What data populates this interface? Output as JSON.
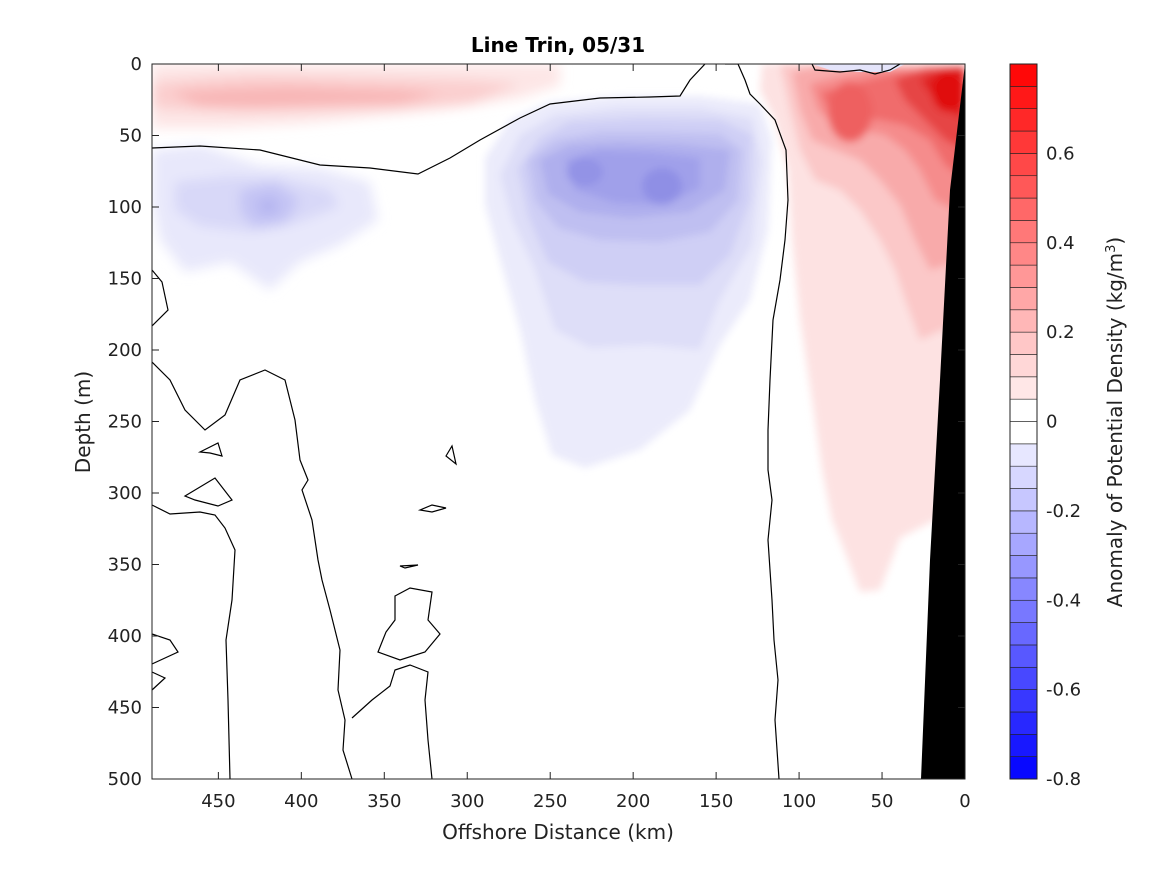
{
  "chart_data": {
    "type": "contour",
    "title": "Line Trin, 05/31",
    "xlabel": "Offshore Distance (km)",
    "ylabel": "Depth (m)",
    "xlim": [
      490,
      0
    ],
    "ylim": [
      500,
      0
    ],
    "x_ticks": [
      "450",
      "400",
      "350",
      "300",
      "250",
      "200",
      "150",
      "100",
      "50",
      "0"
    ],
    "x_tick_values": [
      450,
      400,
      350,
      300,
      250,
      200,
      150,
      100,
      50,
      0
    ],
    "y_ticks": [
      "0",
      "50",
      "100",
      "150",
      "200",
      "250",
      "300",
      "350",
      "400",
      "450",
      "500"
    ],
    "y_tick_values": [
      0,
      50,
      100,
      150,
      200,
      250,
      300,
      350,
      400,
      450,
      500
    ],
    "colorbar": {
      "label_main": "Anomaly of Potential Density (kg/m",
      "label_sup": "3",
      "label_end": ")",
      "range": [
        -0.8,
        0.8
      ],
      "ticks": [
        "0.6",
        "0.4",
        "0.2",
        "0",
        "-0.2",
        "-0.4",
        "-0.6",
        "-0.8"
      ],
      "tick_values": [
        0.6,
        0.4,
        0.2,
        0,
        -0.2,
        -0.4,
        -0.6,
        -0.8
      ],
      "levels": 32,
      "positive_color": "#ff0000",
      "negative_color": "#0000ff"
    },
    "colors": {
      "bottom_topography": "#000000",
      "contour_line": "#000000"
    },
    "regions": [
      {
        "name": "surface-positive-offshore",
        "value": 0.15,
        "x_range": [
          490,
          190
        ],
        "y_range": [
          0,
          60
        ]
      },
      {
        "name": "negative-lens-100m",
        "value": -0.15,
        "x_range": [
          480,
          330
        ],
        "y_range": [
          60,
          160
        ]
      },
      {
        "name": "negative-eddy-core",
        "value": -0.3,
        "x_range": [
          300,
          110
        ],
        "y_range": [
          30,
          280
        ]
      },
      {
        "name": "positive-nearshore",
        "value": 0.4,
        "x_range": [
          150,
          0
        ],
        "y_range": [
          0,
          370
        ]
      },
      {
        "name": "nearshore-surface-max",
        "value": 0.75,
        "x_range": [
          30,
          0
        ],
        "y_range": [
          0,
          60
        ]
      }
    ]
  }
}
